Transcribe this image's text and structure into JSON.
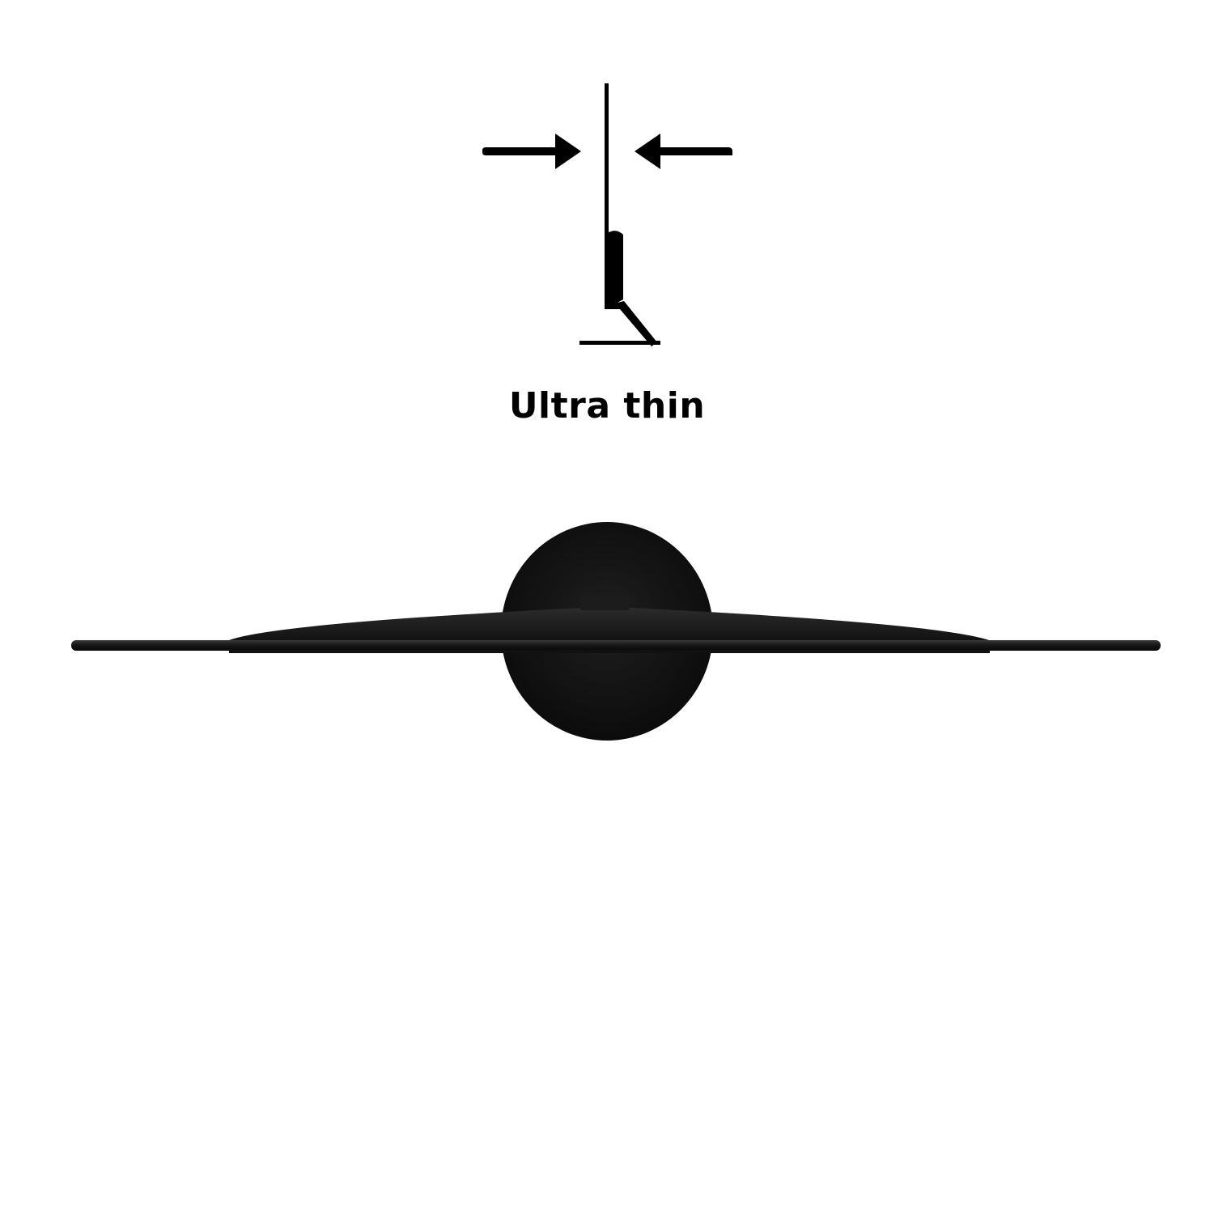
{
  "caption": {
    "text": "Ultra thin"
  },
  "colors": {
    "background": "#ffffff",
    "icon": "#000000",
    "monitor": "#151515"
  },
  "icons": {
    "profile": "monitor-side-profile-icon",
    "arrow_left": "arrow-right-icon",
    "arrow_right": "arrow-left-icon"
  },
  "photo": {
    "subject": "monitor-top-view"
  }
}
